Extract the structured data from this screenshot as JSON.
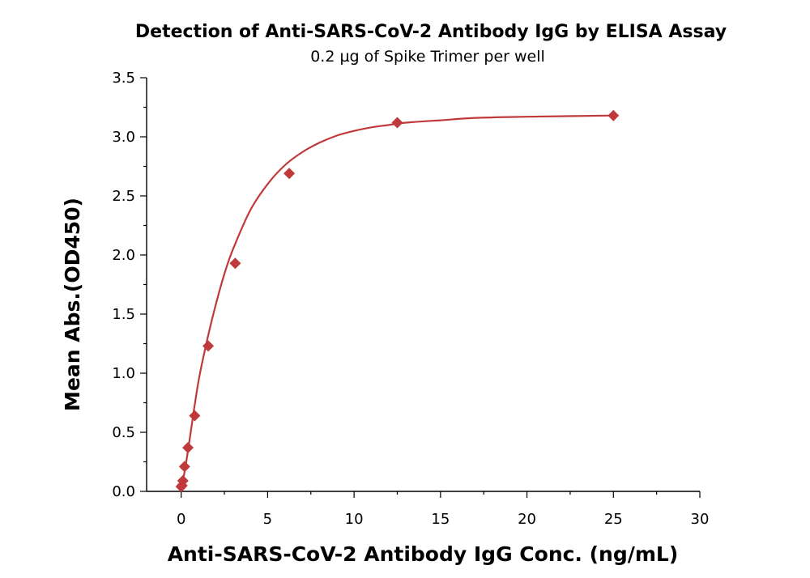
{
  "chart_data": {
    "type": "scatter",
    "title": "Detection of Anti-SARS-CoV-2 Antibody IgG by ELISA Assay",
    "subtitle": "0.2 µg of Spike Trimer  per well",
    "xlabel": "Anti-SARS-CoV-2 Antibody IgG Conc. (ng/mL)",
    "ylabel": "Mean Abs.(OD450)",
    "xlim": [
      -2,
      30
    ],
    "ylim": [
      0,
      3.5
    ],
    "x_ticks": [
      0,
      5,
      10,
      15,
      20,
      25,
      30
    ],
    "x_tick_labels": [
      "0",
      "5",
      "10",
      "15",
      "20",
      "25",
      "30"
    ],
    "y_ticks": [
      0,
      0.5,
      1.0,
      1.5,
      2.0,
      2.5,
      3.0,
      3.5
    ],
    "y_tick_labels": [
      "0.0",
      "0.5",
      "1.0",
      "1.5",
      "2.0",
      "2.5",
      "3.0",
      "3.5"
    ],
    "grid": false,
    "color": "#c0393b",
    "marker": "diamond",
    "series": [
      {
        "x": [
          0.0,
          0.049,
          0.098,
          0.195,
          0.391,
          0.781,
          1.563,
          3.125,
          6.25,
          12.5,
          25
        ],
        "y": [
          0.04,
          0.05,
          0.09,
          0.21,
          0.37,
          0.64,
          1.23,
          1.93,
          2.69,
          3.12,
          3.18
        ]
      }
    ],
    "fit_curve": {
      "type": "sigmoidal",
      "x": [
        0.0,
        0.2,
        0.4,
        0.6,
        0.8,
        1.0,
        1.2,
        1.5,
        2.0,
        2.5,
        3.0,
        4.0,
        5.0,
        6.0,
        7.0,
        8.0,
        9.0,
        10.0,
        11.0,
        12.0,
        13.0,
        15.0,
        17.0,
        20.0,
        25.0
      ],
      "y": [
        0.02,
        0.17,
        0.35,
        0.55,
        0.75,
        0.93,
        1.08,
        1.28,
        1.58,
        1.84,
        2.05,
        2.38,
        2.6,
        2.76,
        2.87,
        2.95,
        3.01,
        3.05,
        3.08,
        3.1,
        3.12,
        3.14,
        3.16,
        3.17,
        3.18
      ]
    }
  }
}
